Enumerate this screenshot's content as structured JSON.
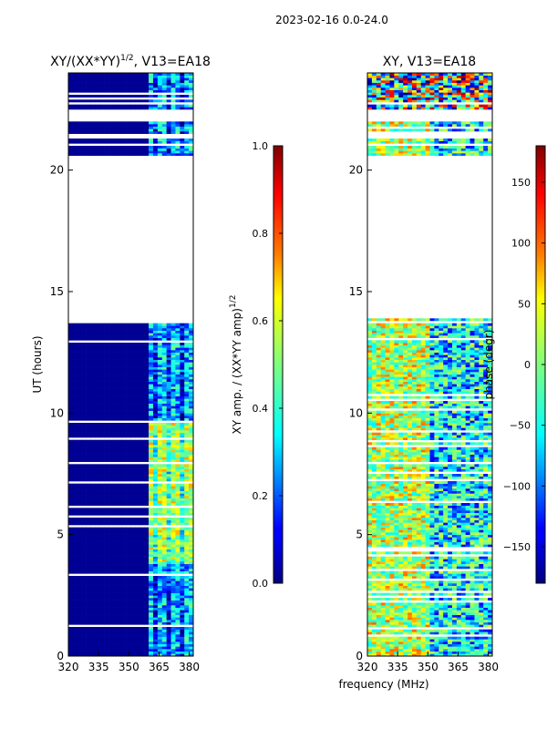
{
  "suptitle": "2023-02-16 0.0-24.0",
  "shared_xlabel": "frequency (MHz)",
  "colors": {
    "deep_blue": "#00007f",
    "blue": "#0000ff",
    "cyan": "#00ffff",
    "green": "#7fff7f",
    "yellow": "#ffff00",
    "orange": "#ff7f00",
    "red": "#ff0000",
    "dark_red": "#7f0000"
  },
  "chart_data": [
    {
      "type": "heatmap",
      "title": "XY/(XX*YY)",
      "title_exponent": "1/2",
      "title_suffix": ", V13=EA18",
      "xlabel": "",
      "ylabel": "UT (hours)",
      "xlim": [
        320,
        382
      ],
      "ylim": [
        0,
        24
      ],
      "xticks": [
        320,
        335,
        350,
        365,
        380
      ],
      "yticks": [
        0,
        5,
        10,
        15,
        20
      ],
      "colorbar": {
        "label": "XY amp. / (XX*YY amp)",
        "label_exponent": "1/2",
        "range": [
          0.0,
          1.0
        ],
        "ticks": [
          "0.0",
          "0.2",
          "0.4",
          "0.6",
          "0.8",
          "1.0"
        ],
        "tick_values": [
          0.0,
          0.2,
          0.4,
          0.6,
          0.8,
          1.0
        ]
      },
      "data_gaps_ut": [
        [
          13.95,
          20.6
        ],
        [
          22.0,
          22.5
        ],
        [
          21.3,
          21.5
        ]
      ],
      "notes": "Amplitude ratio near 0 for 320-360 MHz; bright columns (0.3-0.7) around 360-380 MHz, peaking 4-9 UT"
    },
    {
      "type": "heatmap",
      "title": "XY, V13=EA18",
      "xlabel": "",
      "ylabel": "",
      "xlim": [
        320,
        382
      ],
      "ylim": [
        0,
        24
      ],
      "xticks": [
        320,
        335,
        350,
        365,
        380
      ],
      "yticks": [
        0,
        5,
        10,
        15,
        20
      ],
      "colorbar": {
        "label": "phase (degr)",
        "range": [
          -180,
          180
        ],
        "ticks": [
          "−150",
          "−100",
          "−50",
          "0",
          "50",
          "100",
          "150"
        ],
        "tick_values": [
          -150,
          -100,
          -50,
          0,
          50,
          100,
          150
        ]
      },
      "data_gaps_ut": [
        [
          13.95,
          20.6
        ],
        [
          22.0,
          22.5
        ],
        [
          21.3,
          21.5
        ]
      ],
      "notes": "Phase mostly near 0-100 deg (green/yellow/orange) below 350 MHz, cyan/blue bands near 360-380 MHz"
    }
  ]
}
